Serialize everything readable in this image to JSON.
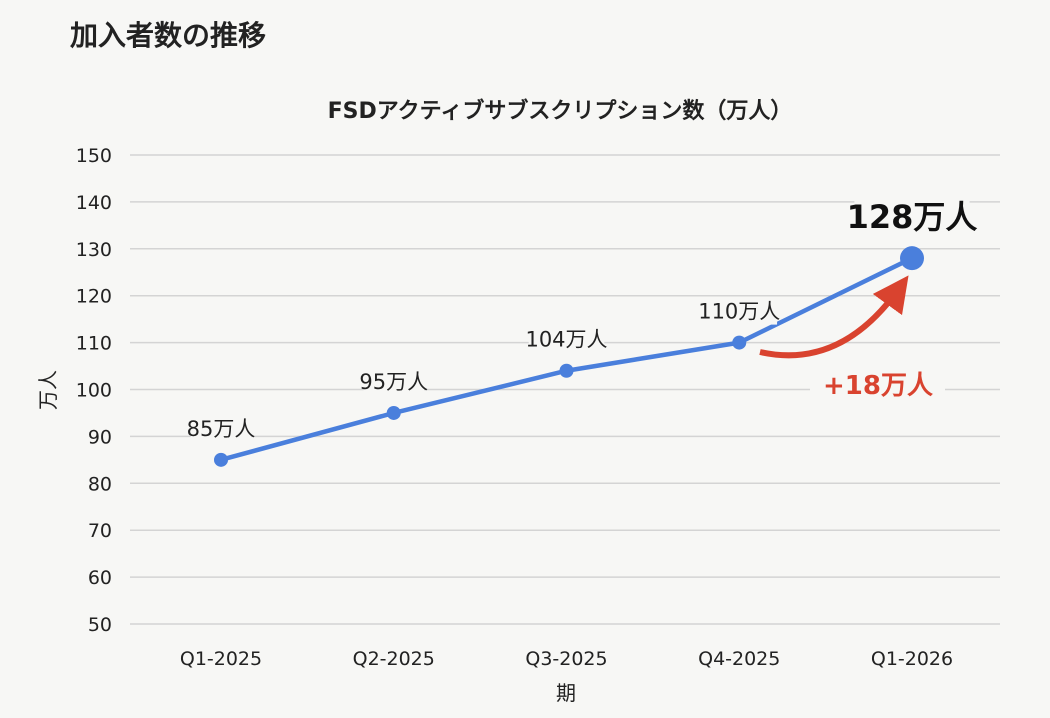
{
  "page_title": "加入者数の推移",
  "chart_data": {
    "type": "line",
    "title": "FSDアクティブサブスクリプション数（万人）",
    "xlabel": "期",
    "ylabel": "万人",
    "categories": [
      "Q1-2025",
      "Q2-2025",
      "Q3-2025",
      "Q4-2025",
      "Q1-2026"
    ],
    "values": [
      85,
      95,
      104,
      110,
      128
    ],
    "data_labels": [
      "85万人",
      "95万人",
      "104万人",
      "110万人",
      "128万人"
    ],
    "ylim": [
      50,
      150
    ],
    "yticks": [
      50,
      60,
      70,
      80,
      90,
      100,
      110,
      120,
      130,
      140,
      150
    ],
    "grid": true,
    "legend": "none",
    "annotation": {
      "text": "+18万人",
      "color": "#d9432f"
    },
    "line_color": "#4a7fdc"
  }
}
